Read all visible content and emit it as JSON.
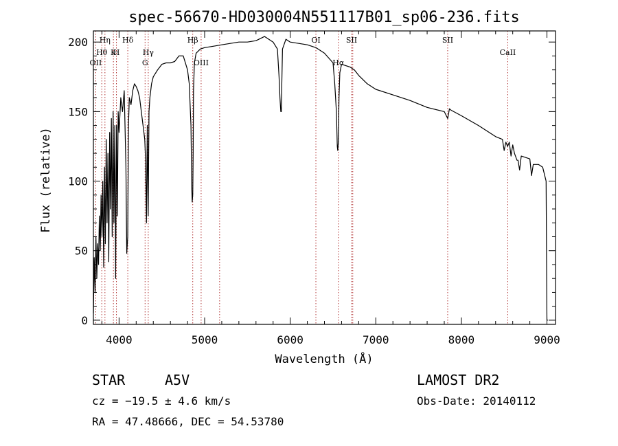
{
  "chart_data": {
    "type": "line",
    "title": "spec-56670-HD030004N551117B01_sp06-236.fits",
    "xlabel": "Wavelength (Å)",
    "ylabel": "Flux (relative)",
    "xlim": [
      3700,
      9100
    ],
    "ylim": [
      -3,
      208
    ],
    "x_ticks": [
      4000,
      5000,
      6000,
      7000,
      8000,
      9000
    ],
    "x_tick_labels": [
      "4000",
      "5000",
      "6000",
      "7000",
      "8000",
      "9000"
    ],
    "y_ticks": [
      0,
      50,
      100,
      150,
      200
    ],
    "y_tick_labels": [
      "0",
      "50",
      "100",
      "150",
      "200"
    ],
    "grid": false,
    "series": [
      {
        "color": "#000000",
        "x": [
          3700,
          3710,
          3720,
          3730,
          3740,
          3750,
          3760,
          3770,
          3780,
          3790,
          3800,
          3810,
          3820,
          3830,
          3840,
          3850,
          3860,
          3870,
          3880,
          3890,
          3900,
          3910,
          3920,
          3930,
          3940,
          3950,
          3960,
          3970,
          3980,
          3990,
          4000,
          4020,
          4040,
          4060,
          4080,
          4090,
          4101,
          4110,
          4120,
          4140,
          4160,
          4180,
          4200,
          4220,
          4240,
          4260,
          4280,
          4300,
          4310,
          4320,
          4330,
          4340,
          4350,
          4360,
          4380,
          4400,
          4450,
          4500,
          4550,
          4600,
          4650,
          4700,
          4750,
          4800,
          4820,
          4840,
          4850,
          4855,
          4861,
          4866,
          4870,
          4880,
          4900,
          4950,
          5000,
          5100,
          5200,
          5300,
          5400,
          5500,
          5600,
          5700,
          5800,
          5850,
          5870,
          5880,
          5890,
          5896,
          5900,
          5910,
          5950,
          6000,
          6100,
          6200,
          6300,
          6400,
          6500,
          6520,
          6540,
          6550,
          6556,
          6562,
          6570,
          6580,
          6600,
          6650,
          6700,
          6750,
          6800,
          6900,
          7000,
          7200,
          7400,
          7600,
          7800,
          7840,
          7860,
          7880,
          8000,
          8200,
          8400,
          8480,
          8500,
          8520,
          8540,
          8560,
          8580,
          8600,
          8620,
          8650,
          8662,
          8680,
          8700,
          8800,
          8820,
          8840,
          8860,
          8900,
          8950,
          8990,
          9000,
          9010
        ],
        "y": [
          5,
          45,
          20,
          60,
          30,
          55,
          40,
          75,
          50,
          90,
          60,
          100,
          38,
          110,
          55,
          130,
          70,
          120,
          42,
          135,
          80,
          145,
          60,
          150,
          70,
          140,
          30,
          140,
          75,
          150,
          135,
          160,
          150,
          165,
          110,
          48,
          60,
          140,
          160,
          155,
          165,
          170,
          168,
          165,
          160,
          150,
          140,
          130,
          115,
          70,
          140,
          75,
          150,
          160,
          170,
          175,
          180,
          184,
          185,
          185,
          186,
          190,
          190,
          180,
          170,
          140,
          95,
          85,
          90,
          120,
          165,
          185,
          192,
          195,
          196,
          197,
          198,
          199,
          200,
          200,
          201,
          204,
          200,
          195,
          175,
          160,
          150,
          150,
          165,
          195,
          202,
          200,
          199,
          198,
          196,
          192,
          185,
          170,
          150,
          125,
          122,
          128,
          160,
          178,
          184,
          183,
          182,
          180,
          176,
          170,
          166,
          162,
          158,
          153,
          150,
          145,
          152,
          151,
          147,
          140,
          132,
          130,
          122,
          128,
          125,
          128,
          118,
          126,
          120,
          115,
          115,
          108,
          118,
          116,
          104,
          112,
          112,
          112,
          110,
          100,
          0,
          0
        ]
      }
    ],
    "spectral_lines": [
      {
        "label": "OII",
        "x": 3727
      },
      {
        "label": "Hθ",
        "x": 3798
      },
      {
        "label": "Hη",
        "x": 3835
      },
      {
        "label": "K",
        "x": 3934
      },
      {
        "label": "H",
        "x": 3969
      },
      {
        "label": "Hδ",
        "x": 4102
      },
      {
        "label": "G",
        "x": 4304
      },
      {
        "label": "Hγ",
        "x": 4341
      },
      {
        "label": "Hβ",
        "x": 4861
      },
      {
        "label": "OIII",
        "x": 4959
      },
      {
        "label": "",
        "x": 5175
      },
      {
        "label": "OI",
        "x": 6300
      },
      {
        "label": "Hα",
        "x": 6563
      },
      {
        "label": "SII",
        "x": 6717
      },
      {
        "label": "",
        "x": 6731
      },
      {
        "label": "SII",
        "x": 7840
      },
      {
        "label": "CaII",
        "x": 8542
      }
    ]
  },
  "info": {
    "object_class": "STAR",
    "subclass": "A5V",
    "survey": "LAMOST DR2",
    "cz": "cz = −19.5 ± 4.6 km/s",
    "obs_date": "Obs-Date: 20140112",
    "coords": "RA =  47.48666, DEC =  54.53780"
  }
}
